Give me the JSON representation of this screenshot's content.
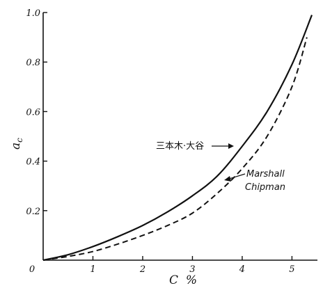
{
  "chart_data": {
    "type": "line",
    "title": "",
    "xlabel": "C  %",
    "ylabel": "a_c",
    "xlim": [
      0,
      5.4
    ],
    "ylim": [
      0,
      1.0
    ],
    "x_ticks": [
      {
        "value": 0,
        "label": "0"
      },
      {
        "value": 1,
        "label": "1"
      },
      {
        "value": 2,
        "label": "2"
      },
      {
        "value": 3,
        "label": "3"
      },
      {
        "value": 4,
        "label": "4"
      },
      {
        "value": 5,
        "label": "5"
      }
    ],
    "y_ticks": [
      {
        "value": 0.2,
        "label": "0.2"
      },
      {
        "value": 0.4,
        "label": "0.4"
      },
      {
        "value": 0.6,
        "label": "0.6"
      },
      {
        "value": 0.8,
        "label": "0.8"
      },
      {
        "value": 1.0,
        "label": "1.0"
      }
    ],
    "grid": false,
    "series": [
      {
        "name": "三本木·大谷",
        "style": "solid",
        "x": [
          0,
          0.5,
          1.0,
          1.5,
          2.0,
          2.5,
          3.0,
          3.5,
          4.0,
          4.5,
          5.0,
          5.4
        ],
        "y": [
          0,
          0.022,
          0.055,
          0.095,
          0.14,
          0.195,
          0.26,
          0.34,
          0.46,
          0.6,
          0.79,
          0.99
        ]
      },
      {
        "name": "Marshall\nChipman",
        "style": "dashed",
        "x": [
          0,
          0.5,
          1.0,
          1.5,
          2.0,
          2.5,
          3.0,
          3.5,
          4.0,
          4.5,
          5.0,
          5.3
        ],
        "y": [
          0,
          0.015,
          0.035,
          0.065,
          0.1,
          0.14,
          0.19,
          0.27,
          0.37,
          0.5,
          0.7,
          0.9
        ]
      }
    ],
    "annotations": [
      {
        "text": "三本木·大谷",
        "series": 0,
        "arrow": true
      },
      {
        "text": "Marshall",
        "series": 1,
        "arrow": true
      },
      {
        "text": "Chipman",
        "series": 1,
        "arrow": false
      }
    ]
  }
}
